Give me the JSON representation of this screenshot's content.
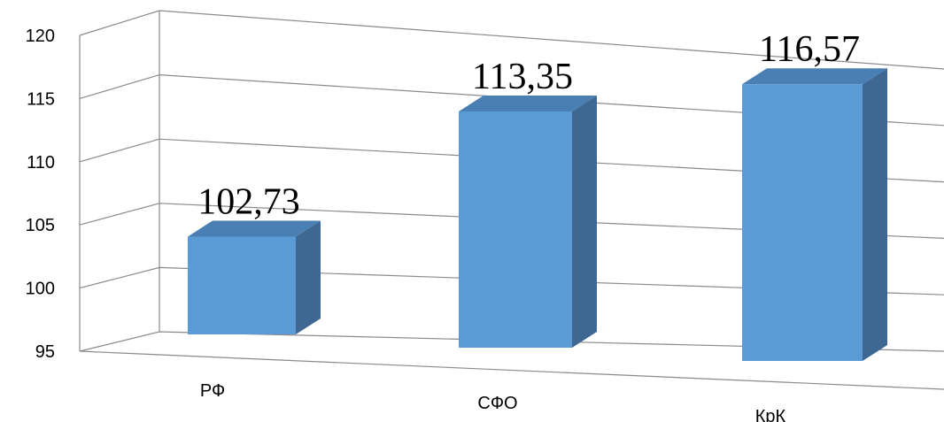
{
  "chart_data": {
    "type": "bar",
    "style": "3d-perspective",
    "categories": [
      "РФ",
      "СФО",
      "КрК"
    ],
    "values": [
      102.73,
      113.35,
      116.57
    ],
    "data_labels": [
      "102,73",
      "113,35",
      "116,57"
    ],
    "y_ticks": [
      "95",
      "100",
      "105",
      "110",
      "115",
      "120"
    ],
    "ylim": [
      95,
      120
    ],
    "grid": true,
    "legend": "none",
    "colors": {
      "bar_front": "#5b9bd5",
      "bar_top": "#4a7fb3",
      "bar_side": "#3e6891",
      "gridline": "#8a8a8a"
    }
  }
}
